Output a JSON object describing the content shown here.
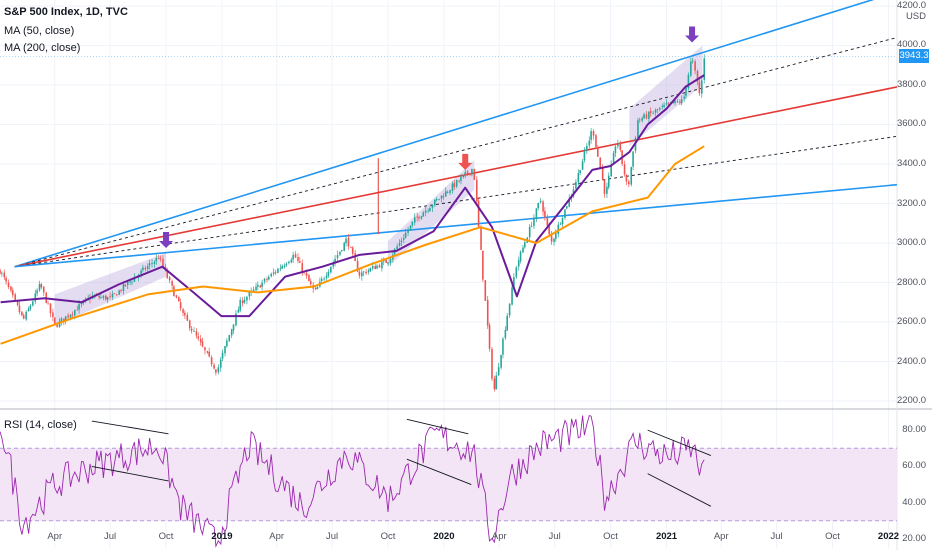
{
  "legend": {
    "title": "S&P 500 Index, 1D, TVC",
    "ma50": "MA (50, close)",
    "ma200": "MA (200, close)",
    "rsi": "RSI (14, close)"
  },
  "price_axis": {
    "currency": "USD",
    "current_price": "3943.3",
    "ticks": [
      "4200.0",
      "4000.0",
      "3800.0",
      "3600.0",
      "3400.0",
      "3200.0",
      "3000.0",
      "2800.0",
      "2600.0",
      "2400.0",
      "2200.0"
    ]
  },
  "rsi_axis": {
    "ticks": [
      "80.00",
      "60.00",
      "40.00",
      "20.00"
    ]
  },
  "time_axis": {
    "ticks": [
      "Apr",
      "Jul",
      "Oct",
      "2019",
      "Apr",
      "Jul",
      "Oct",
      "2020",
      "Apr",
      "Jul",
      "Oct",
      "2021",
      "Apr",
      "Jul",
      "Oct",
      "2022"
    ]
  },
  "colors": {
    "candle_up": "#26a69a",
    "candle_down": "#ef5350",
    "ma50": "#6a1b9a",
    "ma200": "#ff9800",
    "trend_blue": "#2196f3",
    "trend_red": "#e53935",
    "arrow_purple": "#7b3fbf",
    "arrow_red": "#ef5350",
    "rsi_line": "#9c27b0",
    "rsi_band": "#f3e5f5"
  },
  "chart_data": {
    "type": "line",
    "title": "S&P 500 Index, 1D, TVC",
    "ylim": [
      2180,
      4220
    ],
    "x_range": [
      "2018-01-01",
      "2022-01-15"
    ],
    "series": [
      {
        "name": "S&P 500 Index",
        "x": [
          "2018-01-02",
          "2018-02-09",
          "2018-03-09",
          "2018-04-02",
          "2018-06-01",
          "2018-07-02",
          "2018-09-20",
          "2018-10-29",
          "2018-12-24",
          "2019-02-01",
          "2019-04-30",
          "2019-06-03",
          "2019-07-26",
          "2019-08-15",
          "2019-10-01",
          "2019-11-15",
          "2020-01-02",
          "2020-02-19",
          "2020-03-23",
          "2020-04-29",
          "2020-06-08",
          "2020-06-26",
          "2020-08-01",
          "2020-09-02",
          "2020-09-23",
          "2020-10-12",
          "2020-10-30",
          "2020-11-15",
          "2021-01-04",
          "2021-01-29",
          "2021-02-12",
          "2021-02-26",
          "2021-03-04"
        ],
        "values": [
          2860,
          2610,
          2790,
          2580,
          2730,
          2720,
          2930,
          2640,
          2350,
          2700,
          2940,
          2750,
          3020,
          2840,
          2910,
          3120,
          3250,
          3380,
          2240,
          2880,
          3220,
          3000,
          3270,
          3580,
          3240,
          3530,
          3270,
          3620,
          3700,
          3720,
          3940,
          3740,
          3943
        ]
      },
      {
        "name": "MA (50, close)",
        "x": [
          "2018-01-02",
          "2018-03-15",
          "2018-05-15",
          "2018-07-15",
          "2018-09-25",
          "2018-11-15",
          "2018-12-31",
          "2019-02-15",
          "2019-04-15",
          "2019-06-15",
          "2019-08-15",
          "2019-10-15",
          "2019-12-15",
          "2020-02-05",
          "2020-03-20",
          "2020-04-30",
          "2020-06-01",
          "2020-07-15",
          "2020-09-01",
          "2020-10-01",
          "2020-11-01",
          "2020-12-01",
          "2021-01-01",
          "2021-02-01",
          "2021-03-04"
        ],
        "values": [
          2700,
          2720,
          2700,
          2790,
          2880,
          2750,
          2630,
          2630,
          2830,
          2880,
          2940,
          2960,
          3060,
          3280,
          3080,
          2730,
          3010,
          3180,
          3370,
          3390,
          3460,
          3600,
          3680,
          3790,
          3850
        ]
      },
      {
        "name": "MA (200, close)",
        "x": [
          "2018-01-02",
          "2018-05-01",
          "2018-09-01",
          "2018-12-01",
          "2019-03-01",
          "2019-06-01",
          "2019-09-01",
          "2019-12-01",
          "2020-03-01",
          "2020-06-01",
          "2020-09-01",
          "2020-12-01",
          "2021-01-15",
          "2021-03-04"
        ],
        "values": [
          2490,
          2620,
          2740,
          2780,
          2750,
          2780,
          2890,
          2990,
          3080,
          3000,
          3160,
          3230,
          3400,
          3490
        ]
      }
    ],
    "rsi": {
      "name": "RSI (14, close)",
      "ylim": [
        15,
        90
      ],
      "band": [
        30,
        70
      ],
      "x": [
        "2018-01-02",
        "2018-02-08",
        "2018-04-01",
        "2018-06-01",
        "2018-09-20",
        "2018-10-25",
        "2018-12-24",
        "2019-02-15",
        "2019-05-15",
        "2019-07-26",
        "2019-10-03",
        "2019-12-20",
        "2020-02-19",
        "2020-03-20",
        "2020-04-20",
        "2020-06-08",
        "2020-09-02",
        "2020-09-23",
        "2020-11-10",
        "2021-01-04",
        "2021-02-12",
        "2021-03-04"
      ],
      "values": [
        85,
        28,
        50,
        60,
        72,
        38,
        18,
        72,
        38,
        68,
        42,
        78,
        68,
        20,
        55,
        72,
        82,
        42,
        74,
        65,
        70,
        55
      ]
    }
  }
}
